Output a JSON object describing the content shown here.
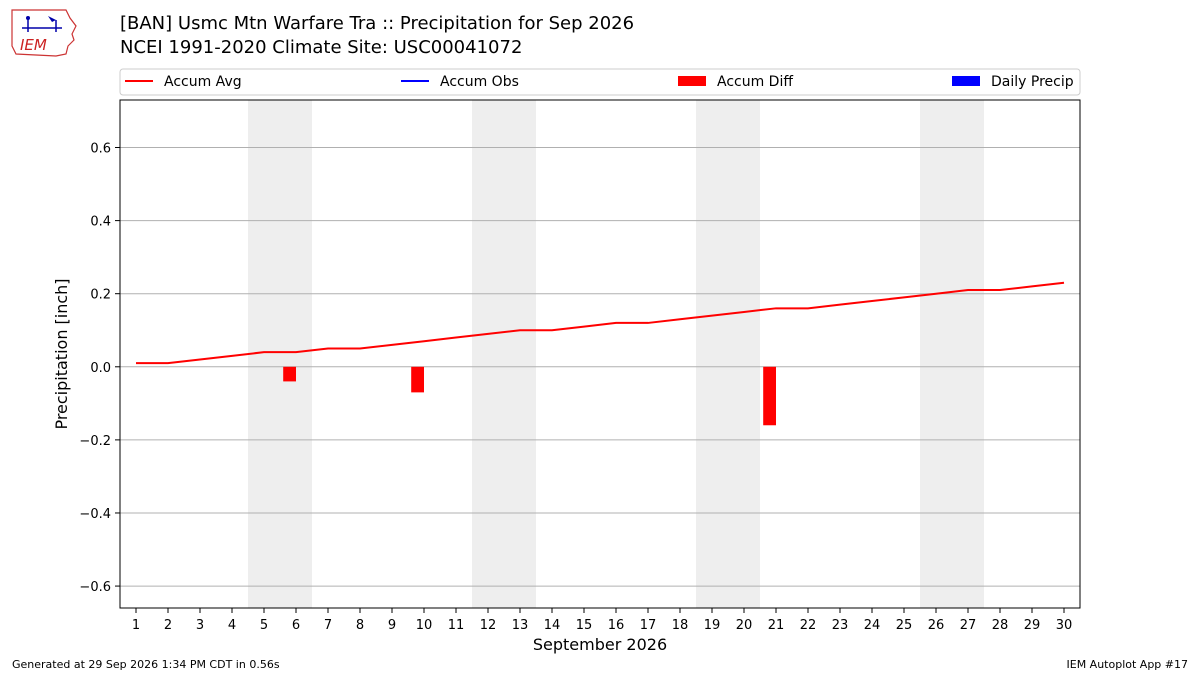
{
  "header": {
    "title_line1": "[BAN] Usmc Mtn Warfare Tra :: Precipitation for Sep 2026",
    "title_line2": "NCEI 1991-2020 Climate Site: USC00041072"
  },
  "logo": {
    "text": "IEM",
    "icon": "iem-iowa-logo-icon"
  },
  "footer": {
    "generated": "Generated at 29 Sep 2026 1:34 PM CDT in 0.56s",
    "app": "IEM Autoplot App #17"
  },
  "colors": {
    "accum_avg": "#ff0000",
    "accum_obs": "#0000ff",
    "accum_diff": "#ff0000",
    "daily_precip": "#0000ff",
    "weekend_band": "#eeeeee",
    "grid": "#b0b0b0"
  },
  "chart_data": {
    "type": "line",
    "xlabel": "September 2026",
    "ylabel": "Precipitation [inch]",
    "xlim": [
      0.5,
      30.5
    ],
    "ylim": [
      -0.66,
      0.73
    ],
    "yticks": [
      -0.6,
      -0.4,
      -0.2,
      0.0,
      0.2,
      0.4,
      0.6
    ],
    "ytick_labels": [
      "−0.6",
      "−0.4",
      "−0.2",
      "0.0",
      "0.2",
      "0.4",
      "0.6"
    ],
    "x": [
      1,
      2,
      3,
      4,
      5,
      6,
      7,
      8,
      9,
      10,
      11,
      12,
      13,
      14,
      15,
      16,
      17,
      18,
      19,
      20,
      21,
      22,
      23,
      24,
      25,
      26,
      27,
      28,
      29,
      30
    ],
    "xtick_labels": [
      "1",
      "2",
      "3",
      "4",
      "5",
      "6",
      "7",
      "8",
      "9",
      "10",
      "11",
      "12",
      "13",
      "14",
      "15",
      "16",
      "17",
      "18",
      "19",
      "20",
      "21",
      "22",
      "23",
      "24",
      "25",
      "26",
      "27",
      "28",
      "29",
      "30"
    ],
    "grid": "horizontal",
    "legend_position": "top",
    "legend": [
      {
        "label": "Accum Avg",
        "kind": "line"
      },
      {
        "label": "Accum Obs",
        "kind": "line"
      },
      {
        "label": "Accum Diff",
        "kind": "bar"
      },
      {
        "label": "Daily Precip",
        "kind": "bar"
      }
    ],
    "weekend_spans": [
      [
        4.5,
        6.5
      ],
      [
        11.5,
        13.5
      ],
      [
        18.5,
        20.5
      ],
      [
        25.5,
        27.5
      ]
    ],
    "series": [
      {
        "name": "Accum Avg",
        "kind": "line",
        "values": [
          0.01,
          0.01,
          0.02,
          0.03,
          0.04,
          0.04,
          0.05,
          0.05,
          0.06,
          0.07,
          0.08,
          0.09,
          0.1,
          0.1,
          0.11,
          0.12,
          0.12,
          0.13,
          0.14,
          0.15,
          0.16,
          0.16,
          0.17,
          0.18,
          0.19,
          0.2,
          0.21,
          0.21,
          0.22,
          0.23
        ]
      },
      {
        "name": "Accum Diff",
        "kind": "bar",
        "values": [
          0,
          0,
          0,
          0,
          0,
          -0.04,
          0,
          0,
          0,
          -0.07,
          0,
          0,
          0,
          0,
          0,
          0,
          0,
          0,
          0,
          0,
          -0.16,
          0,
          0,
          0,
          0,
          0,
          0,
          0,
          0,
          0
        ]
      }
    ]
  }
}
